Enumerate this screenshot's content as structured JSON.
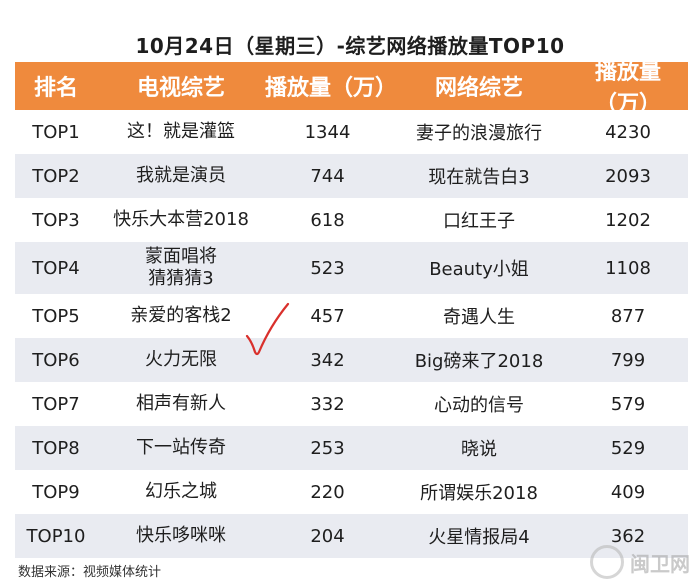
{
  "title": "10月24日（星期三）-综艺网络播放量TOP10",
  "headers": {
    "rank": "排名",
    "tv_show": "电视综艺",
    "tv_views": "播放量（万）",
    "web_show": "网络综艺",
    "web_views": "播放量（万）"
  },
  "rows": [
    {
      "rank": "TOP1",
      "tv_show": [
        "这！就是灌篮"
      ],
      "tv_views": "1344",
      "web_show": "妻子的浪漫旅行",
      "web_views": "4230"
    },
    {
      "rank": "TOP2",
      "tv_show": [
        "我就是演员"
      ],
      "tv_views": "744",
      "web_show": "现在就告白3",
      "web_views": "2093"
    },
    {
      "rank": "TOP3",
      "tv_show": [
        "快乐大本营2018"
      ],
      "tv_views": "618",
      "web_show": "口红王子",
      "web_views": "1202"
    },
    {
      "rank": "TOP4",
      "tv_show": [
        "蒙面唱将",
        "猜猜猜3"
      ],
      "tv_views": "523",
      "web_show": "Beauty小姐",
      "web_views": "1108"
    },
    {
      "rank": "TOP5",
      "tv_show": [
        "亲爱的客栈2"
      ],
      "tv_views": "457",
      "web_show": "奇遇人生",
      "web_views": "877"
    },
    {
      "rank": "TOP6",
      "tv_show": [
        "火力无限"
      ],
      "tv_views": "342",
      "web_show": "Big磅来了2018",
      "web_views": "799"
    },
    {
      "rank": "TOP7",
      "tv_show": [
        "相声有新人"
      ],
      "tv_views": "332",
      "web_show": "心动的信号",
      "web_views": "579"
    },
    {
      "rank": "TOP8",
      "tv_show": [
        "下一站传奇"
      ],
      "tv_views": "253",
      "web_show": "晓说",
      "web_views": "529"
    },
    {
      "rank": "TOP9",
      "tv_show": [
        "幻乐之城"
      ],
      "tv_views": "220",
      "web_show": "所谓娱乐2018",
      "web_views": "409"
    },
    {
      "rank": "TOP10",
      "tv_show": [
        "快乐哆咪咪"
      ],
      "tv_views": "204",
      "web_show": "火星情报局4",
      "web_views": "362"
    }
  ],
  "source": "数据来源：视频媒体统计",
  "watermark": "闽卫网",
  "colors": {
    "header_bg": "#ef8a3d",
    "stripe_bg": "#e9ebf1",
    "checkmark": "#d9302c"
  }
}
